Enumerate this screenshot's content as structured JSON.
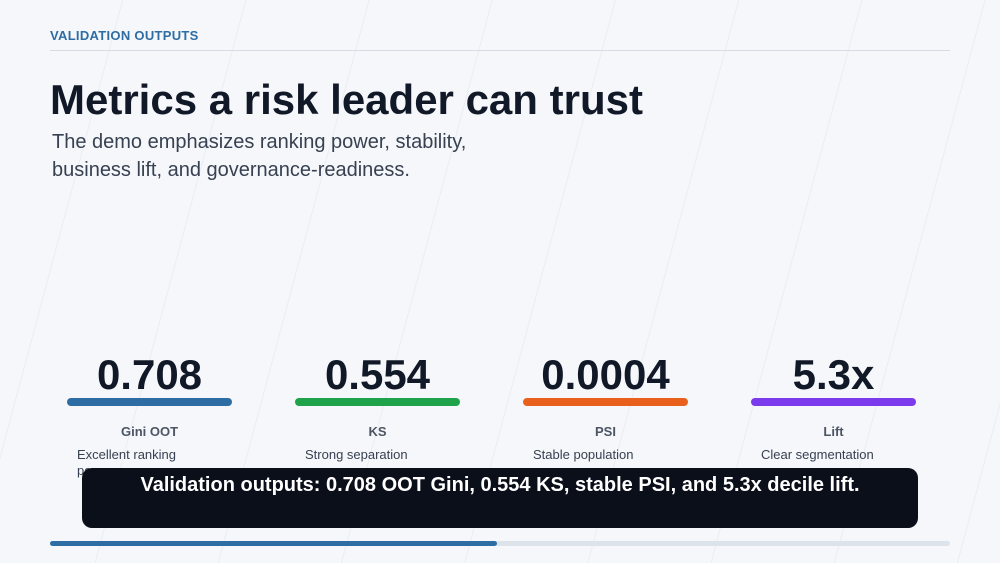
{
  "eyebrow": "VALIDATION OUTPUTS",
  "title": "Metrics a risk leader can trust",
  "subtitle": "The demo emphasizes ranking power, stability, business lift, and governance-readiness.",
  "metrics": [
    {
      "value": "0.708",
      "label": "Gini OOT",
      "description": "Excellent ranking power"
    },
    {
      "value": "0.554",
      "label": "KS",
      "description": "Strong separation"
    },
    {
      "value": "0.0004",
      "label": "PSI",
      "description": "Stable population"
    },
    {
      "value": "5.3x",
      "label": "Lift",
      "description": "Clear segmentation"
    }
  ],
  "caption": "Validation outputs: 0.708 OOT Gini, 0.554 KS, stable PSI, and 5.3x decile lift."
}
